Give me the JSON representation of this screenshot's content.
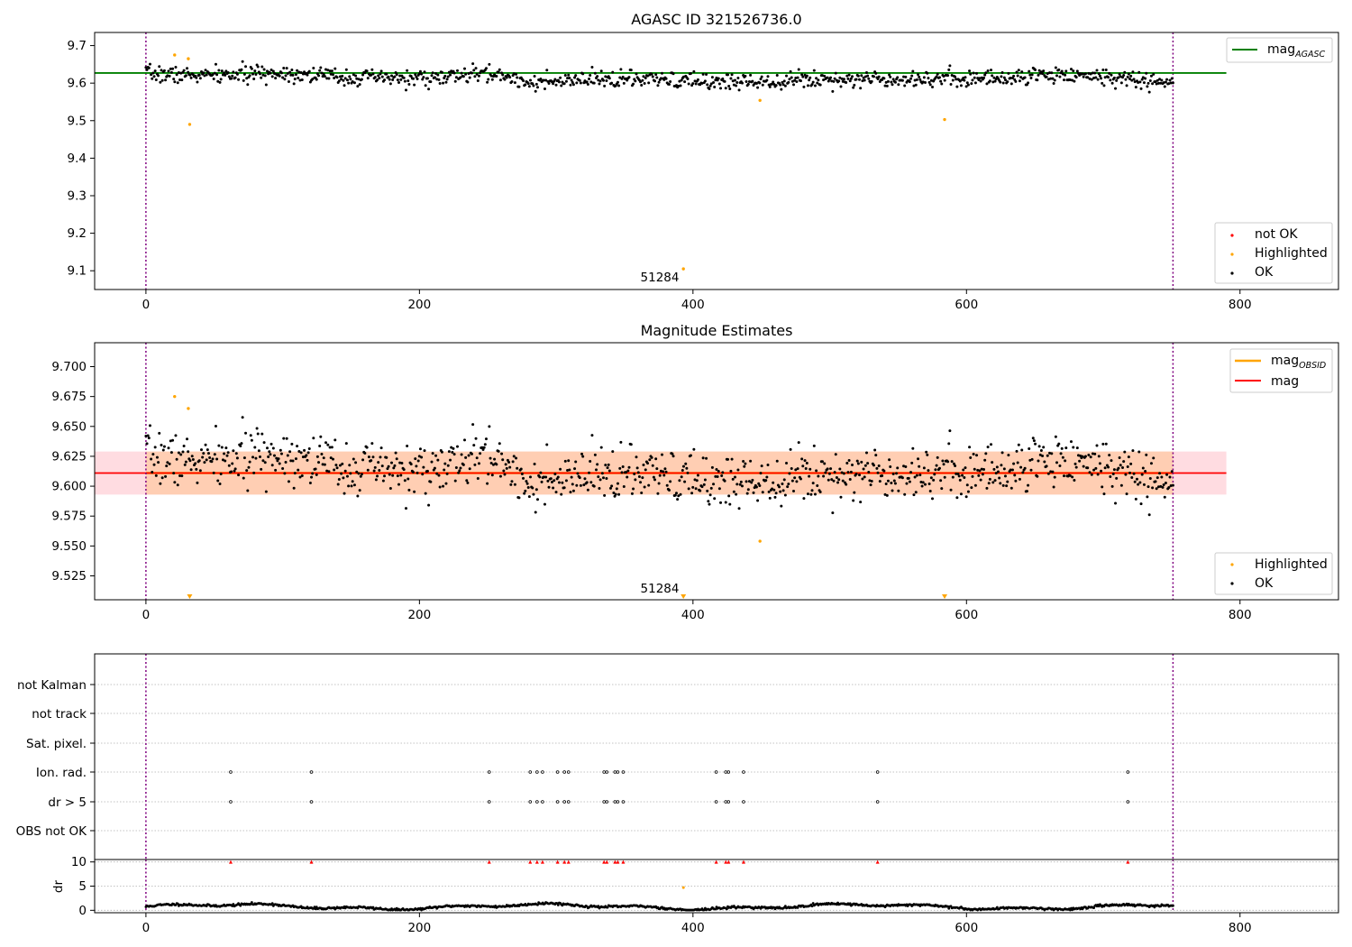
{
  "chart_data": [
    {
      "type": "scatter",
      "title": "AGASC ID 321526736.0",
      "xlabel": "",
      "ylabel": "",
      "xlim": [
        -37.5,
        872
      ],
      "ylim": [
        9.05,
        9.735
      ],
      "xticks": [
        0,
        200,
        400,
        600,
        800
      ],
      "yticks": [
        9.1,
        9.2,
        9.3,
        9.4,
        9.5,
        9.6,
        9.7
      ],
      "ytick_decimals": 1,
      "grid": false,
      "reference_line": {
        "name": "mag_AGASC",
        "y": 9.627,
        "x_range": [
          -37.5,
          790
        ],
        "color": "#008000"
      },
      "obsid_lines": {
        "x": [
          0,
          751
        ],
        "color": "#800080"
      },
      "obsid_label": {
        "text": "51284",
        "x": 375,
        "y": 9.07
      },
      "series": [
        {
          "name": "not OK",
          "color": "#ff0000",
          "points": []
        },
        {
          "name": "Highlighted",
          "color": "#ffa500",
          "points": [
            [
              21,
              9.675
            ],
            [
              31,
              9.665
            ],
            [
              32,
              9.49
            ],
            [
              393,
              9.105
            ],
            [
              449,
              9.554
            ],
            [
              584,
              9.503
            ]
          ]
        },
        {
          "name": "OK",
          "color": "#000000",
          "generated": true,
          "x_range": [
            0,
            751
          ],
          "count": 1000
        }
      ],
      "legend_top": {
        "position": "upper right",
        "entries": [
          {
            "label": "mag",
            "sub": "AGASC",
            "color": "#008000"
          }
        ]
      },
      "legend_bottom": {
        "position": "lower right",
        "entries": [
          {
            "label": "not OK",
            "color": "#ff0000"
          },
          {
            "label": "Highlighted",
            "color": "#ffa500"
          },
          {
            "label": "OK",
            "color": "#000000"
          }
        ]
      }
    },
    {
      "type": "scatter",
      "title": "Magnitude Estimates",
      "xlabel": "",
      "ylabel": "",
      "xlim": [
        -37.5,
        872
      ],
      "ylim": [
        9.505,
        9.72
      ],
      "xticks": [
        0,
        200,
        400,
        600,
        800
      ],
      "yticks": [
        9.525,
        9.55,
        9.575,
        9.6,
        9.625,
        9.65,
        9.675,
        9.7
      ],
      "ytick_decimals": 3,
      "grid": false,
      "mag_line": {
        "name": "mag",
        "y": 9.611,
        "color": "#ff0000",
        "band": [
          9.593,
          9.629
        ],
        "x_range": [
          -37.5,
          790
        ]
      },
      "obsid_line": {
        "name": "mag_OBSID",
        "y": 9.611,
        "color": "#ffa500",
        "x_range": [
          0,
          751
        ]
      },
      "obsid_lines": {
        "x": [
          0,
          751
        ],
        "color": "#800080"
      },
      "obsid_label": {
        "text": "51284",
        "x": 375,
        "y": 9.51
      },
      "series": [
        {
          "name": "Highlighted",
          "color": "#ffa500",
          "points": [
            [
              21,
              9.675
            ],
            [
              31,
              9.665
            ],
            [
              449,
              9.554
            ]
          ],
          "off_scale_markers": [
            32,
            393,
            584
          ]
        },
        {
          "name": "OK",
          "color": "#000000",
          "generated": true,
          "x_range": [
            0,
            751
          ],
          "count": 1000
        }
      ],
      "legend_top": {
        "position": "upper right",
        "entries": [
          {
            "label": "mag",
            "sub": "OBSID",
            "color": "#ffa500"
          },
          {
            "label": "mag",
            "sub": "",
            "color": "#ff0000"
          }
        ]
      },
      "legend_bottom": {
        "position": "lower right",
        "entries": [
          {
            "label": "Highlighted",
            "color": "#ffa500"
          },
          {
            "label": "OK",
            "color": "#000000"
          }
        ]
      }
    },
    {
      "type": "scatter",
      "title": "",
      "xlim": [
        -37.5,
        872
      ],
      "categories": [
        "not Kalman",
        "not track",
        "Sat. pixel.",
        "Ion. rad.",
        "dr > 5",
        "OBS not OK"
      ],
      "flag_points": {
        "Ion. rad.": [
          62,
          121,
          251,
          281,
          286,
          290,
          301,
          306,
          309,
          335,
          337,
          343,
          345,
          349,
          417,
          424,
          426,
          437,
          535,
          718
        ],
        "dr > 5": [
          62,
          121,
          251,
          281,
          286,
          290,
          301,
          306,
          309,
          335,
          337,
          343,
          345,
          349,
          417,
          424,
          426,
          437,
          535,
          718
        ]
      },
      "obsid_lines": {
        "x": [
          0,
          751
        ],
        "color": "#800080"
      }
    },
    {
      "type": "scatter",
      "ylabel": "dr",
      "xlim": [
        -37.5,
        872
      ],
      "ylim": [
        -0.5,
        10.5
      ],
      "xticks": [
        0,
        200,
        400,
        600,
        800
      ],
      "yticks": [
        0,
        5,
        10
      ],
      "capped_points": {
        "y": 10,
        "color": "#ff0000",
        "x": [
          62,
          121,
          251,
          281,
          286,
          290,
          301,
          306,
          309,
          335,
          337,
          343,
          345,
          349,
          417,
          424,
          426,
          437,
          535,
          718
        ]
      },
      "highlight_point": {
        "x": 393,
        "y": 4.7,
        "color": "#ffa500"
      },
      "series": [
        {
          "name": "OK",
          "color": "#000000",
          "generated": true,
          "x_range": [
            0,
            751
          ],
          "count": 1000
        }
      ],
      "obsid_lines": {
        "x": [
          0,
          751
        ],
        "color": "#800080"
      }
    }
  ]
}
